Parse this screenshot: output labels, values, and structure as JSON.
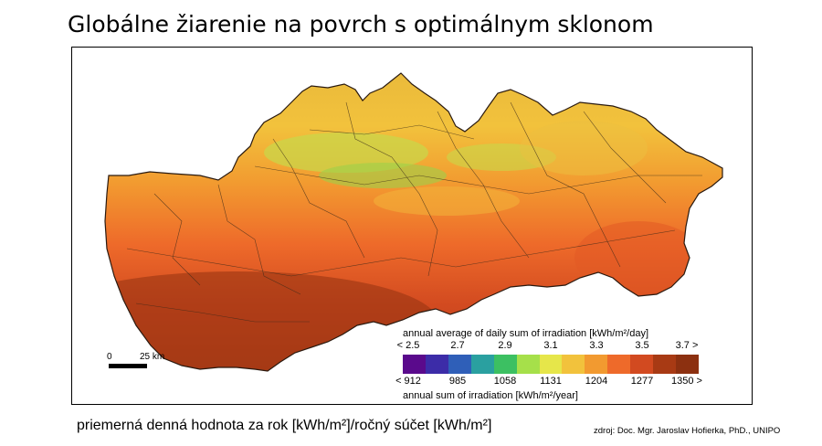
{
  "title": "Globálne žiarenie na povrch s optimálnym sklonom",
  "legend": {
    "top_title": "annual average of daily sum of irradiation [kWh/m²/day]",
    "top_ticks": [
      "< 2.5",
      "2.7",
      "2.9",
      "3.1",
      "3.3",
      "3.5",
      "3.7 >"
    ],
    "bottom_title": "annual sum of irradiation [kWh/m²/year]",
    "bottom_ticks": [
      "< 912",
      "985",
      "1058",
      "1131",
      "1204",
      "1277",
      "1350 >"
    ],
    "colors": [
      "#5a0a8c",
      "#3c2ca8",
      "#2f5fb8",
      "#2aa0a0",
      "#3cc062",
      "#a6e04a",
      "#e6e64a",
      "#f2c23c",
      "#f29a30",
      "#ee6a2a",
      "#d24a20",
      "#a83a14",
      "#8c3010"
    ]
  },
  "scale_bar": {
    "start_label": "0",
    "end_label": "25 km"
  },
  "caption": "priemerná denná hodnota za rok [kWh/m²]/ročný súčet [kWh/m²]",
  "source": "zdroj: Doc. Mgr. Jaroslav Hofierka, PhD., UNIPO"
}
